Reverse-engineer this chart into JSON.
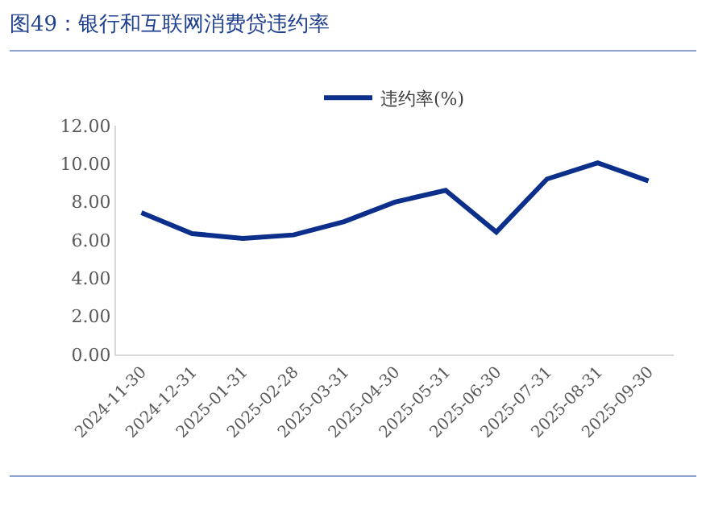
{
  "chart_data": {
    "type": "line",
    "title": "图49：银行和互联网消费贷违约率",
    "categories": [
      "2024-11-30",
      "2024-12-31",
      "2025-01-31",
      "2025-02-28",
      "2025-03-31",
      "2025-04-30",
      "2025-05-31",
      "2025-06-30",
      "2025-07-31",
      "2025-08-31",
      "2025-09-30"
    ],
    "series": [
      {
        "name": "违约率(%)",
        "color": "#0b2f8a",
        "values": [
          7.44,
          6.34,
          6.09,
          6.27,
          6.97,
          7.99,
          8.61,
          6.42,
          9.2,
          10.05,
          9.1
        ]
      }
    ],
    "ylim": [
      0,
      12
    ],
    "yticks": [
      {
        "value": 0,
        "label": "0.00"
      },
      {
        "value": 2,
        "label": "2.00"
      },
      {
        "value": 4,
        "label": "4.00"
      },
      {
        "value": 6,
        "label": "6.00"
      },
      {
        "value": 8,
        "label": "8.00"
      },
      {
        "value": 10,
        "label": "10.00"
      },
      {
        "value": 12,
        "label": "12.00"
      }
    ],
    "legend": "top"
  }
}
